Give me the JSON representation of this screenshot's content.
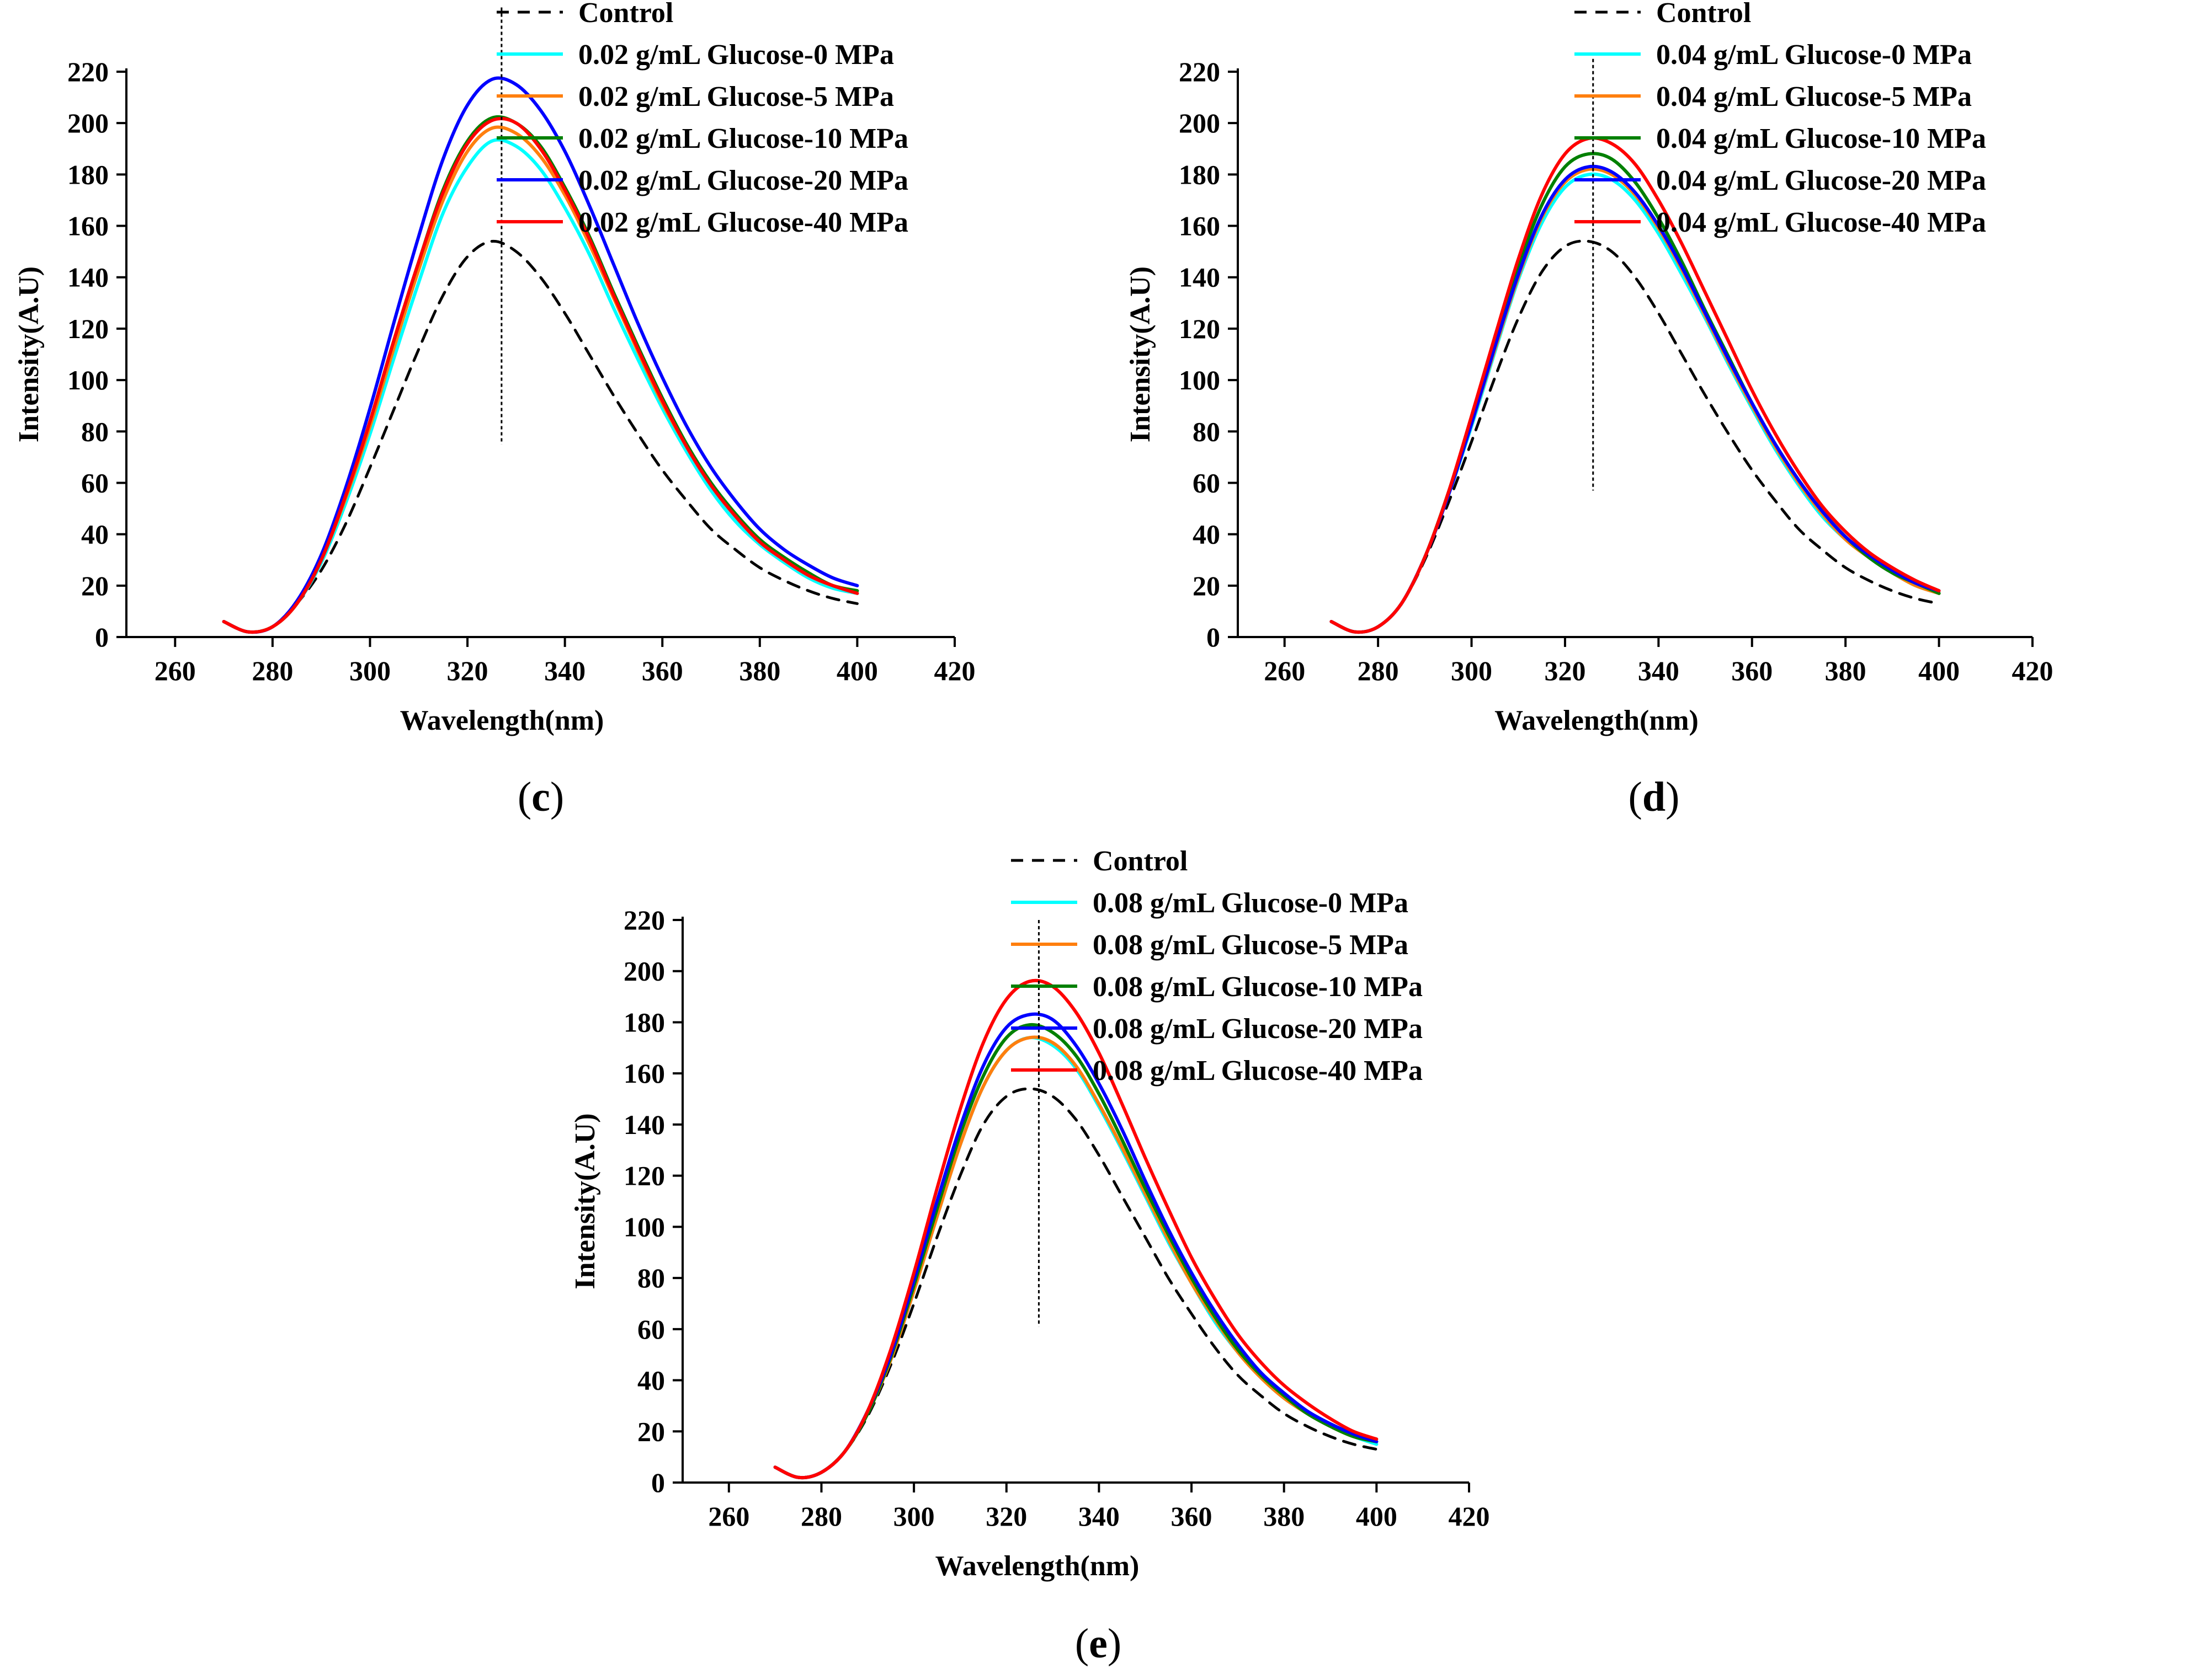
{
  "figure": {
    "panels": [
      "c",
      "d",
      "e"
    ]
  },
  "chart_data": [
    {
      "id": "c",
      "type": "line",
      "panel_label": "c",
      "xlabel": "Wavelength(nm)",
      "ylabel": "Intensity(A.U)",
      "xlim": [
        250,
        420
      ],
      "ylim": [
        0,
        220
      ],
      "xticks": [
        260,
        280,
        300,
        320,
        340,
        360,
        380,
        400,
        420
      ],
      "yticks": [
        0,
        20,
        40,
        60,
        80,
        100,
        120,
        140,
        160,
        180,
        200,
        220
      ],
      "marker_line_x": 327,
      "marker_line_y": [
        75,
        245
      ],
      "legend_position": "top-right",
      "x": [
        270,
        275,
        280,
        285,
        290,
        295,
        300,
        305,
        310,
        315,
        320,
        325,
        330,
        335,
        340,
        345,
        350,
        355,
        360,
        365,
        370,
        375,
        380,
        385,
        390,
        395,
        400
      ],
      "series": [
        {
          "name": "Control",
          "color": "#000000",
          "dashed": true,
          "values": [
            6,
            2,
            4,
            13,
            26,
            44,
            66,
            89,
            112,
            133,
            148,
            154,
            150,
            140,
            126,
            110,
            94,
            79,
            65,
            53,
            42,
            34,
            27,
            22,
            18,
            15,
            13
          ]
        },
        {
          "name": "0.02 g/mL Glucose-0 MPa",
          "color": "#00ffff",
          "dashed": false,
          "values": [
            6,
            2,
            4,
            13,
            29,
            52,
            79,
            109,
            138,
            165,
            183,
            193,
            191,
            182,
            167,
            149,
            128,
            108,
            89,
            72,
            57,
            45,
            36,
            29,
            23,
            19,
            17
          ]
        },
        {
          "name": "0.02 g/mL Glucose-5 MPa",
          "color": "#ff7f0e",
          "dashed": false,
          "values": [
            6,
            2,
            4,
            13,
            30,
            54,
            82,
            113,
            143,
            170,
            189,
            198,
            196,
            187,
            172,
            153,
            132,
            111,
            91,
            74,
            59,
            47,
            37,
            30,
            24,
            20,
            18
          ]
        },
        {
          "name": "0.02 g/mL Glucose-10 MPa",
          "color": "#008000",
          "dashed": false,
          "values": [
            6,
            2,
            4,
            13,
            30,
            55,
            84,
            116,
            146,
            174,
            193,
            202,
            200,
            191,
            175,
            156,
            134,
            113,
            93,
            75,
            60,
            48,
            38,
            31,
            25,
            20,
            18
          ]
        },
        {
          "name": "0.02 g/mL Glucose-20 MPa",
          "color": "#0000ff",
          "dashed": false,
          "values": [
            6,
            2,
            4,
            14,
            32,
            58,
            89,
            123,
            156,
            186,
            207,
            217,
            215,
            205,
            189,
            168,
            145,
            122,
            101,
            82,
            66,
            53,
            42,
            34,
            28,
            23,
            20
          ]
        },
        {
          "name": "0.02 g/mL Glucose-40 MPa",
          "color": "#ff0000",
          "dashed": false,
          "values": [
            6,
            2,
            4,
            13,
            30,
            55,
            84,
            116,
            146,
            173,
            192,
            201,
            200,
            190,
            174,
            155,
            133,
            112,
            92,
            74,
            59,
            47,
            37,
            30,
            24,
            20,
            17
          ]
        }
      ]
    },
    {
      "id": "d",
      "type": "line",
      "panel_label": "d",
      "xlabel": "Wavelength(nm)",
      "ylabel": "Intensity(A.U)",
      "xlim": [
        250,
        420
      ],
      "ylim": [
        0,
        220
      ],
      "xticks": [
        260,
        280,
        300,
        320,
        340,
        360,
        380,
        400,
        420
      ],
      "yticks": [
        0,
        20,
        40,
        60,
        80,
        100,
        120,
        140,
        160,
        180,
        200,
        220
      ],
      "marker_line_x": 326,
      "marker_line_y": [
        57,
        225
      ],
      "legend_position": "top-right",
      "x": [
        270,
        275,
        280,
        285,
        290,
        295,
        300,
        305,
        310,
        315,
        320,
        325,
        330,
        335,
        340,
        345,
        350,
        355,
        360,
        365,
        370,
        375,
        380,
        385,
        390,
        395,
        400
      ],
      "series": [
        {
          "name": "Control",
          "color": "#000000",
          "dashed": true,
          "values": [
            6,
            2,
            4,
            13,
            30,
            52,
            76,
            101,
            124,
            142,
            152,
            154,
            150,
            140,
            126,
            110,
            94,
            79,
            65,
            53,
            42,
            34,
            27,
            22,
            18,
            15,
            13
          ]
        },
        {
          "name": "0.04 g/mL Glucose-0 MPa",
          "color": "#00ffff",
          "dashed": false,
          "values": [
            6,
            2,
            4,
            13,
            31,
            55,
            82,
            111,
            139,
            161,
            175,
            180,
            178,
            170,
            157,
            141,
            124,
            106,
            89,
            73,
            59,
            47,
            38,
            31,
            25,
            20,
            17
          ]
        },
        {
          "name": "0.04 g/mL Glucose-5 MPa",
          "color": "#ff7f0e",
          "dashed": false,
          "values": [
            6,
            2,
            4,
            13,
            31,
            55,
            83,
            112,
            140,
            163,
            177,
            182,
            180,
            172,
            159,
            143,
            125,
            107,
            90,
            74,
            60,
            48,
            38,
            31,
            25,
            20,
            17
          ]
        },
        {
          "name": "0.04 g/mL Glucose-10 MPa",
          "color": "#008000",
          "dashed": false,
          "values": [
            6,
            2,
            4,
            13,
            31,
            56,
            85,
            115,
            144,
            168,
            183,
            188,
            186,
            177,
            163,
            146,
            127,
            109,
            91,
            75,
            61,
            49,
            39,
            31,
            25,
            21,
            17
          ]
        },
        {
          "name": "0.04 g/mL Glucose-20 MPa",
          "color": "#0000ff",
          "dashed": false,
          "values": [
            6,
            2,
            4,
            13,
            31,
            55,
            83,
            113,
            141,
            164,
            178,
            183,
            181,
            173,
            160,
            144,
            126,
            108,
            91,
            75,
            61,
            49,
            39,
            32,
            26,
            21,
            18
          ]
        },
        {
          "name": "0.04 g/mL Glucose-40 MPa",
          "color": "#ff0000",
          "dashed": false,
          "values": [
            6,
            2,
            4,
            13,
            31,
            56,
            86,
            117,
            147,
            172,
            188,
            194,
            192,
            184,
            170,
            153,
            134,
            115,
            96,
            79,
            64,
            51,
            41,
            33,
            27,
            22,
            18
          ]
        }
      ]
    },
    {
      "id": "e",
      "type": "line",
      "panel_label": "e",
      "xlabel": "Wavelength(nm)",
      "ylabel": "Intensity(A.U)",
      "xlim": [
        250,
        420
      ],
      "ylim": [
        0,
        220
      ],
      "xticks": [
        260,
        280,
        300,
        320,
        340,
        360,
        380,
        400,
        420
      ],
      "yticks": [
        0,
        20,
        40,
        60,
        80,
        100,
        120,
        140,
        160,
        180,
        200,
        220
      ],
      "marker_line_x": 327,
      "marker_line_y": [
        61,
        220
      ],
      "legend_position": "top-right",
      "x": [
        270,
        275,
        280,
        285,
        290,
        295,
        300,
        305,
        310,
        315,
        320,
        325,
        330,
        335,
        340,
        345,
        350,
        355,
        360,
        365,
        370,
        375,
        380,
        385,
        390,
        395,
        400
      ],
      "series": [
        {
          "name": "Control",
          "color": "#000000",
          "dashed": true,
          "values": [
            6,
            2,
            4,
            12,
            26,
            46,
            70,
            96,
            120,
            140,
            151,
            154,
            151,
            142,
            128,
            112,
            96,
            80,
            66,
            53,
            42,
            34,
            27,
            22,
            18,
            15,
            13
          ]
        },
        {
          "name": "0.08 g/mL Glucose-0 MPa",
          "color": "#00ffff",
          "dashed": false,
          "values": [
            6,
            2,
            4,
            12,
            27,
            48,
            75,
            104,
            132,
            155,
            169,
            174,
            171,
            162,
            147,
            130,
            112,
            94,
            78,
            63,
            51,
            41,
            33,
            27,
            22,
            18,
            15
          ]
        },
        {
          "name": "0.08 g/mL Glucose-5 MPa",
          "color": "#ff7f0e",
          "dashed": false,
          "values": [
            6,
            2,
            4,
            12,
            27,
            48,
            75,
            104,
            132,
            155,
            169,
            174,
            172,
            163,
            148,
            131,
            113,
            95,
            78,
            64,
            51,
            41,
            33,
            27,
            22,
            18,
            16
          ]
        },
        {
          "name": "0.08 g/mL Glucose-10 MPa",
          "color": "#008000",
          "dashed": false,
          "values": [
            6,
            2,
            4,
            12,
            27,
            49,
            77,
            107,
            136,
            159,
            174,
            179,
            176,
            167,
            152,
            134,
            115,
            97,
            80,
            65,
            52,
            42,
            34,
            27,
            22,
            18,
            16
          ]
        },
        {
          "name": "0.08 g/mL Glucose-20 MPa",
          "color": "#0000ff",
          "dashed": false,
          "values": [
            6,
            2,
            4,
            12,
            28,
            50,
            79,
            110,
            139,
            163,
            178,
            183,
            181,
            171,
            156,
            138,
            118,
            99,
            82,
            67,
            54,
            43,
            35,
            28,
            23,
            19,
            16
          ]
        },
        {
          "name": "0.08 g/mL Glucose-40 MPa",
          "color": "#ff0000",
          "dashed": false,
          "values": [
            6,
            2,
            4,
            12,
            28,
            52,
            82,
            115,
            146,
            172,
            189,
            196,
            194,
            184,
            168,
            148,
            127,
            107,
            88,
            72,
            58,
            47,
            38,
            31,
            25,
            20,
            17
          ]
        }
      ]
    }
  ]
}
